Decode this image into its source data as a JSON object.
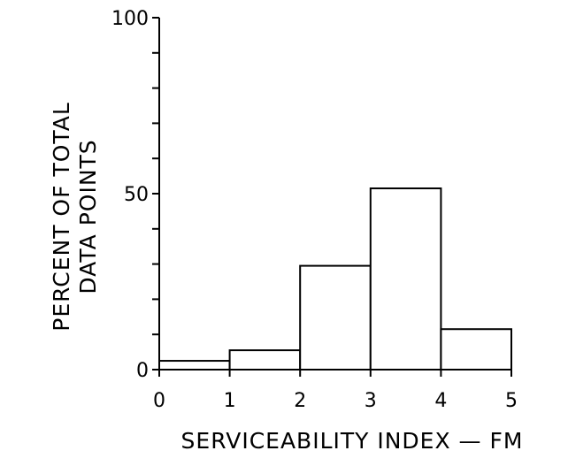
{
  "chart_data": {
    "type": "bar",
    "bins": [
      {
        "from": 0,
        "to": 1,
        "value": 2.5
      },
      {
        "from": 1,
        "to": 2,
        "value": 5.5
      },
      {
        "from": 2,
        "to": 3,
        "value": 29.5
      },
      {
        "from": 3,
        "to": 4,
        "value": 51.5
      },
      {
        "from": 4,
        "to": 5,
        "value": 11.5
      }
    ],
    "xlim": [
      0,
      5
    ],
    "ylim": [
      0,
      100
    ],
    "x_ticks": [
      "0",
      "1",
      "2",
      "3",
      "4",
      "5"
    ],
    "y_ticks": [
      "0",
      "50",
      "100"
    ],
    "y_ticks_unlabeled": [
      10,
      20,
      30,
      40,
      60,
      70,
      80,
      90
    ],
    "xlabel": "SERVICEABILITY INDEX — FM",
    "ylabel_line1": "PERCENT OF TOTAL",
    "ylabel_line2": "DATA POINTS",
    "title": "",
    "grid": false,
    "bar_fill": "#ffffff",
    "line_color": "#000000"
  }
}
